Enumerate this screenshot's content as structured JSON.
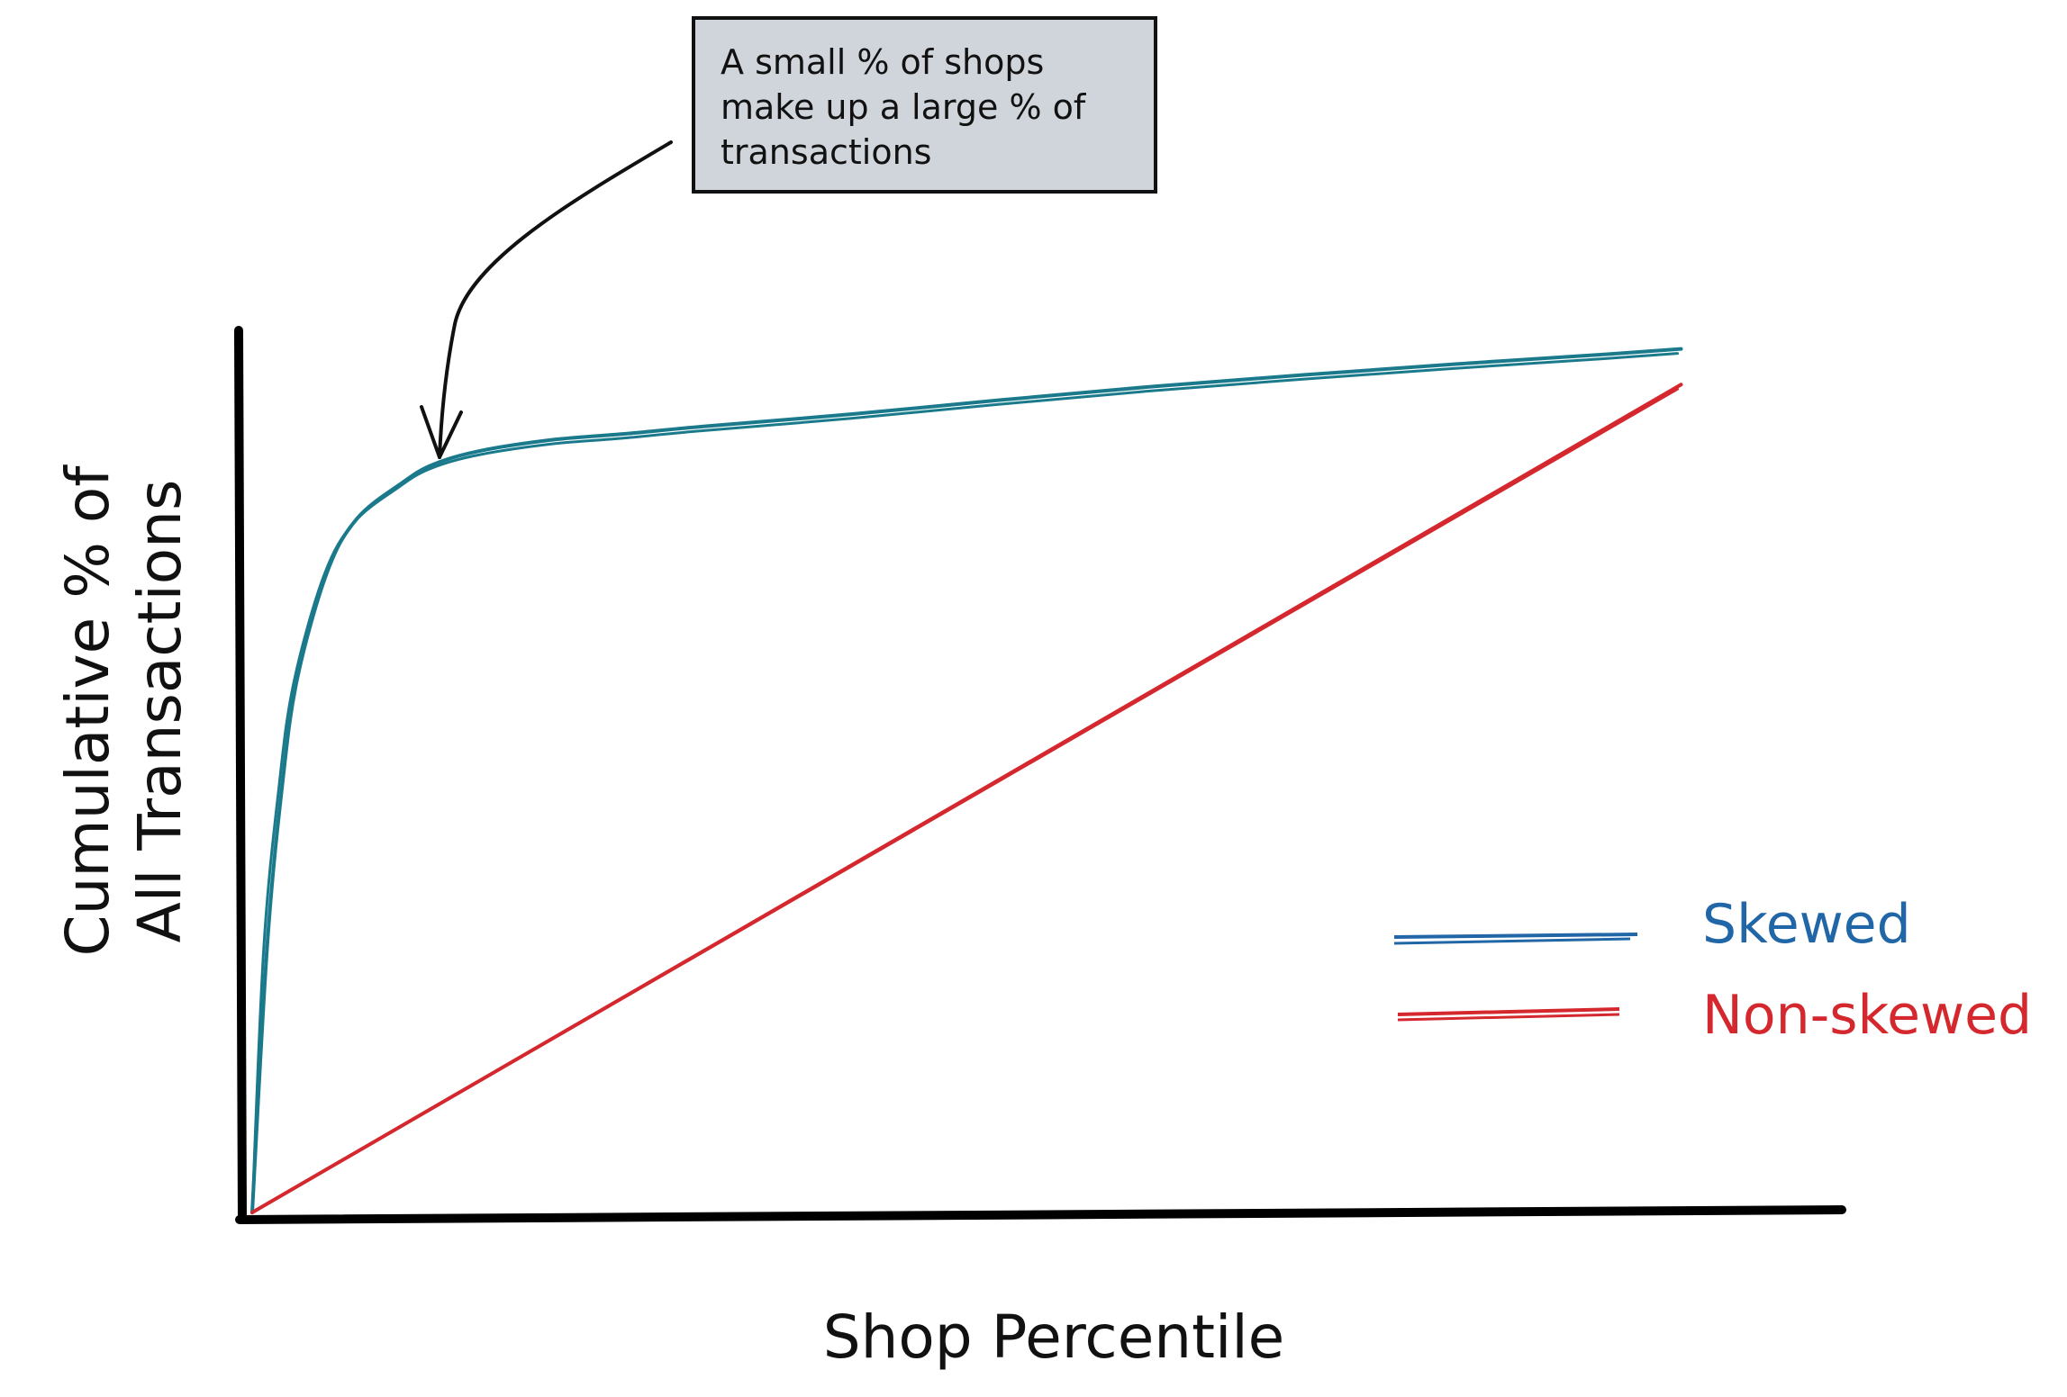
{
  "chart_data": {
    "type": "line",
    "title": "",
    "xlabel": "Shop Percentile",
    "ylabel_lines": [
      "Cumulative % of",
      "All Transactions"
    ],
    "xlim": [
      0,
      100
    ],
    "ylim": [
      0,
      100
    ],
    "grid": false,
    "legend_position": "right",
    "series": [
      {
        "name": "Skewed",
        "color": "#1a7a8c",
        "legend_color": "#2166a6",
        "x": [
          0,
          1,
          2,
          3,
          5,
          7,
          10,
          12,
          15,
          20,
          25,
          30,
          40,
          50,
          60,
          70,
          80,
          90,
          95
        ],
        "y": [
          0,
          30,
          48,
          60,
          72,
          78,
          82,
          84,
          85.5,
          86.8,
          87.5,
          88.3,
          89.7,
          91.3,
          92.8,
          94.1,
          95.3,
          96.4,
          97
        ]
      },
      {
        "name": "Non-skewed",
        "color": "#d4282e",
        "legend_color": "#d4282e",
        "x": [
          0,
          95
        ],
        "y": [
          0,
          93
        ]
      }
    ],
    "annotation": {
      "lines": [
        "A small % of shops",
        "make up a large % of",
        "transactions"
      ]
    }
  }
}
